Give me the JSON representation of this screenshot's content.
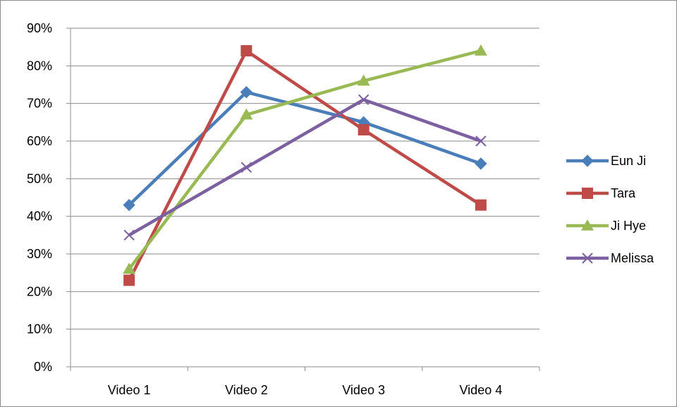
{
  "chart_data": {
    "type": "line",
    "categories": [
      "Video 1",
      "Video 2",
      "Video 3",
      "Video 4"
    ],
    "ylim": [
      0,
      90
    ],
    "ytick_step": 10,
    "ytick_labels": [
      "0%",
      "10%",
      "20%",
      "30%",
      "40%",
      "50%",
      "60%",
      "70%",
      "80%",
      "90%"
    ],
    "grid": true,
    "legend_position": "right",
    "series": [
      {
        "name": "Eun Ji",
        "color": "#4a7ebb",
        "marker": "diamond",
        "values": [
          43,
          73,
          65,
          54
        ]
      },
      {
        "name": "Tara",
        "color": "#be4b48",
        "marker": "square",
        "values": [
          23,
          84,
          63,
          43
        ]
      },
      {
        "name": "Ji Hye",
        "color": "#98b954",
        "marker": "triangle",
        "values": [
          26,
          67,
          76,
          84
        ]
      },
      {
        "name": "Melissa",
        "color": "#7d60a0",
        "marker": "x",
        "values": [
          35,
          53,
          71,
          60
        ]
      }
    ]
  }
}
